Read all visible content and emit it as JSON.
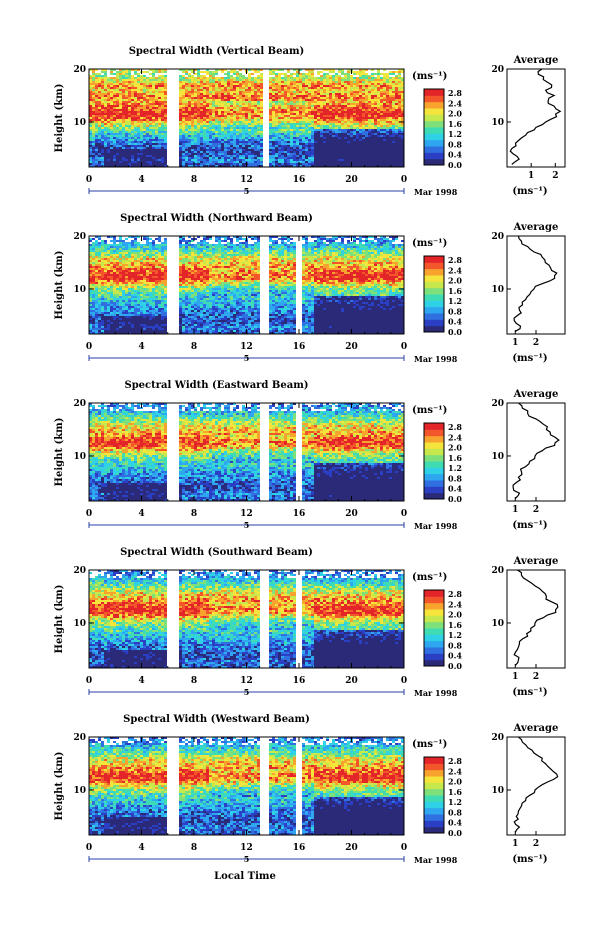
{
  "figure": {
    "bottom_label": "Local Time",
    "height_label": "Height (km)",
    "unit_label": "(ms⁻¹)",
    "average_title": "Average",
    "day_label": "5",
    "month_label": "Mar 1998",
    "colors": [
      "#2a2a78",
      "#2b3fc4",
      "#2f6fe0",
      "#2ea6f0",
      "#2fd1e6",
      "#3fdcb4",
      "#7ee07a",
      "#c6e84c",
      "#f4e43c",
      "#f8a32e",
      "#f2562a",
      "#e3252a"
    ]
  },
  "chart_data": [
    {
      "type": "heatmap",
      "title": "Spectral Width (Vertical Beam)",
      "xlabel": "",
      "ylabel": "Height (km)",
      "xlim": [
        0,
        24
      ],
      "ylim": [
        1.5,
        20
      ],
      "x_ticks": [
        "0",
        "4",
        "8",
        "12",
        "16",
        "20",
        "0"
      ],
      "y_ticks": [
        "20",
        "10"
      ],
      "colorbar_ticks": [
        "2.8",
        "2.4",
        "2.0",
        "1.6",
        "1.2",
        "0.8",
        "0.4",
        "0.0"
      ],
      "data_gaps_hours": [
        [
          5.9,
          6.8
        ],
        [
          13.2,
          13.5
        ]
      ],
      "average_profile": {
        "xlim": [
          0,
          2.4
        ],
        "x_ticks": [
          "1",
          "2"
        ],
        "heights_km": [
          2,
          3,
          4,
          5,
          6,
          7,
          8,
          9,
          10,
          11,
          12,
          13,
          14,
          15,
          16,
          17,
          18,
          19,
          20
        ],
        "values": [
          0.2,
          0.5,
          0.25,
          0.2,
          0.35,
          0.6,
          0.85,
          1.2,
          1.6,
          2.05,
          2.2,
          1.95,
          1.7,
          1.95,
          1.6,
          1.85,
          1.5,
          1.3,
          1.45
        ]
      }
    },
    {
      "type": "heatmap",
      "title": "Spectral Width (Northward Beam)",
      "xlabel": "",
      "ylabel": "Height (km)",
      "xlim": [
        0,
        24
      ],
      "ylim": [
        1.5,
        20
      ],
      "x_ticks": [
        "0",
        "4",
        "8",
        "12",
        "16",
        "20",
        "0"
      ],
      "y_ticks": [
        "20",
        "10"
      ],
      "colorbar_ticks": [
        "2.8",
        "2.4",
        "2.0",
        "1.6",
        "1.2",
        "0.8",
        "0.4",
        "0.0"
      ],
      "data_gaps_hours": [
        [
          5.9,
          6.8
        ],
        [
          12.9,
          13.6
        ],
        [
          15.7,
          16.1
        ]
      ],
      "average_profile": {
        "xlim": [
          0.6,
          3.4
        ],
        "x_ticks": [
          "1",
          "2"
        ],
        "heights_km": [
          2,
          3,
          4,
          5,
          6,
          7,
          8,
          9,
          10,
          11,
          12,
          13,
          14,
          15,
          16,
          17,
          18,
          19,
          20
        ],
        "values": [
          1.0,
          1.25,
          0.95,
          1.1,
          1.2,
          1.35,
          1.5,
          1.7,
          1.9,
          2.3,
          2.9,
          3.0,
          2.7,
          2.45,
          2.3,
          1.9,
          1.6,
          1.3,
          1.15
        ]
      }
    },
    {
      "type": "heatmap",
      "title": "Spectral Width (Eastward Beam)",
      "xlabel": "",
      "ylabel": "Height (km)",
      "xlim": [
        0,
        24
      ],
      "ylim": [
        1.5,
        20
      ],
      "x_ticks": [
        "0",
        "4",
        "8",
        "12",
        "16",
        "20",
        "0"
      ],
      "y_ticks": [
        "20",
        "10"
      ],
      "colorbar_ticks": [
        "2.8",
        "2.4",
        "2.0",
        "1.6",
        "1.2",
        "0.8",
        "0.4",
        "0.0"
      ],
      "data_gaps_hours": [
        [
          5.9,
          6.8
        ],
        [
          12.9,
          13.6
        ],
        [
          15.7,
          16.1
        ]
      ],
      "average_profile": {
        "xlim": [
          0.6,
          3.4
        ],
        "x_ticks": [
          "1",
          "2"
        ],
        "heights_km": [
          2,
          3,
          4,
          5,
          6,
          7,
          8,
          9,
          10,
          11,
          12,
          13,
          14,
          15,
          16,
          17,
          18,
          19,
          20
        ],
        "values": [
          1.0,
          1.2,
          0.9,
          1.05,
          1.15,
          1.3,
          1.5,
          1.7,
          1.95,
          2.3,
          2.9,
          3.1,
          2.7,
          2.5,
          2.35,
          2.0,
          1.6,
          1.35,
          1.15
        ]
      }
    },
    {
      "type": "heatmap",
      "title": "Spectral Width (Southward Beam)",
      "xlabel": "",
      "ylabel": "Height (km)",
      "xlim": [
        0,
        24
      ],
      "ylim": [
        1.5,
        20
      ],
      "x_ticks": [
        "0",
        "4",
        "8",
        "12",
        "16",
        "20",
        "0"
      ],
      "y_ticks": [
        "20",
        "10"
      ],
      "colorbar_ticks": [
        "2.8",
        "2.4",
        "2.0",
        "1.6",
        "1.2",
        "0.8",
        "0.4",
        "0.0"
      ],
      "data_gaps_hours": [
        [
          5.9,
          6.8
        ],
        [
          12.9,
          13.6
        ],
        [
          15.7,
          16.1
        ]
      ],
      "average_profile": {
        "xlim": [
          0.6,
          3.4
        ],
        "x_ticks": [
          "1",
          "2"
        ],
        "heights_km": [
          2,
          3,
          4,
          5,
          6,
          7,
          8,
          9,
          10,
          11,
          12,
          13,
          14,
          15,
          16,
          17,
          18,
          19,
          20
        ],
        "values": [
          1.0,
          1.15,
          0.95,
          1.1,
          1.2,
          1.35,
          1.55,
          1.75,
          1.95,
          2.35,
          2.95,
          3.05,
          2.75,
          2.5,
          2.3,
          1.95,
          1.6,
          1.3,
          1.1
        ]
      }
    },
    {
      "type": "heatmap",
      "title": "Spectral Width (Westward Beam)",
      "xlabel": "Local Time",
      "ylabel": "Height (km)",
      "xlim": [
        0,
        24
      ],
      "ylim": [
        1.5,
        20
      ],
      "x_ticks": [
        "0",
        "4",
        "8",
        "12",
        "16",
        "20",
        "0"
      ],
      "y_ticks": [
        "20",
        "10"
      ],
      "colorbar_ticks": [
        "2.8",
        "2.4",
        "2.0",
        "1.6",
        "1.2",
        "0.8",
        "0.4",
        "0.0"
      ],
      "data_gaps_hours": [
        [
          5.9,
          6.8
        ],
        [
          12.9,
          13.6
        ],
        [
          15.7,
          16.1
        ]
      ],
      "average_profile": {
        "xlim": [
          0.6,
          3.4
        ],
        "x_ticks": [
          "1",
          "2"
        ],
        "heights_km": [
          2,
          3,
          4,
          5,
          6,
          7,
          8,
          9,
          10,
          11,
          12,
          13,
          14,
          15,
          16,
          17,
          18,
          19,
          20
        ],
        "values": [
          1.0,
          1.2,
          0.95,
          1.05,
          1.15,
          1.3,
          1.5,
          1.7,
          1.95,
          2.3,
          2.85,
          3.0,
          2.7,
          2.45,
          2.3,
          1.9,
          1.6,
          1.35,
          1.15
        ]
      }
    }
  ]
}
